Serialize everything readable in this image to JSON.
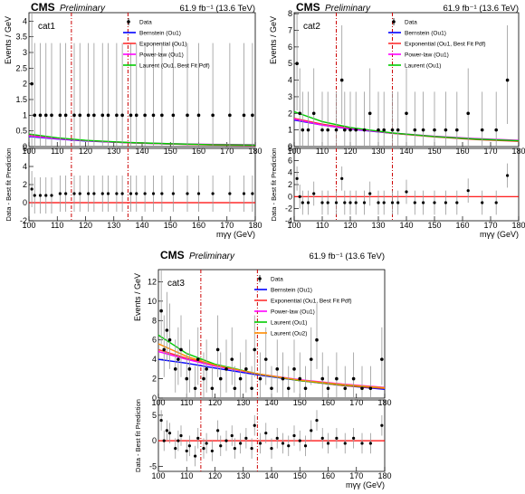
{
  "header": {
    "cms": "CMS",
    "preliminary": "Preliminary",
    "lumi": "61.9 fb⁻¹ (13.6 TeV)"
  },
  "colors": {
    "data": "#000000",
    "bernstein": "#0000ff",
    "exponential": "#ff3030",
    "powerlaw": "#ff00ff",
    "laurent": "#00cc00",
    "laurent2": "#ff8c00",
    "window": "#cc0000",
    "fitline": "#ff0000"
  },
  "chart_data": [
    {
      "type": "scatter",
      "category": "cat1",
      "xlabel": "mγγ (GeV)",
      "ylabel": "Events / GeV",
      "ratio_ylabel": "Data - Best fit Prediction",
      "xlim": [
        100,
        180
      ],
      "ylim": [
        0,
        4.5
      ],
      "ratio_ylim": [
        -2,
        6
      ],
      "yticks": [
        0,
        0.5,
        1,
        1.5,
        2,
        2.5,
        3,
        3.5,
        4
      ],
      "ratio_yticks": [
        -2,
        0,
        2,
        4,
        6
      ],
      "xticks": [
        100,
        110,
        120,
        130,
        140,
        150,
        160,
        170,
        180
      ],
      "signal_window": [
        115,
        135
      ],
      "legend": [
        "Data",
        "Bernstein (Ou1)",
        "Exponential (Ou1)",
        "Power-law (Ou1)",
        "Laurent (Ou1, Best Fit Pdf)"
      ],
      "data_x": [
        101,
        102,
        104,
        106,
        108,
        111,
        113,
        116,
        118,
        121,
        123,
        126,
        128,
        131,
        133,
        136,
        138,
        141,
        144,
        147,
        151,
        156,
        160,
        165,
        171,
        176,
        179
      ],
      "data_y": [
        2,
        1,
        1,
        1,
        1,
        1,
        1,
        1,
        1,
        1,
        1,
        1,
        1,
        1,
        1,
        1,
        1,
        1,
        1,
        1,
        1,
        1,
        1,
        1,
        1,
        1,
        1
      ],
      "ratio_y": [
        1.5,
        0.8,
        0.8,
        0.8,
        0.8,
        1,
        1,
        1,
        1,
        1,
        1,
        1,
        1,
        1,
        1,
        1,
        1,
        1,
        1,
        1,
        1,
        1,
        1,
        1,
        1,
        1,
        1
      ],
      "series": [
        {
          "name": "Bernstein (Ou1)",
          "x": [
            100,
            110,
            120,
            135,
            150,
            165,
            180
          ],
          "y": [
            0.32,
            0.24,
            0.18,
            0.12,
            0.08,
            0.06,
            0.05
          ]
        },
        {
          "name": "Exponential (Ou1)",
          "x": [
            100,
            110,
            120,
            135,
            150,
            165,
            180
          ],
          "y": [
            0.36,
            0.26,
            0.19,
            0.12,
            0.08,
            0.05,
            0.04
          ]
        },
        {
          "name": "Power-law (Ou1)",
          "x": [
            100,
            110,
            120,
            135,
            150,
            165,
            180
          ],
          "y": [
            0.34,
            0.25,
            0.19,
            0.13,
            0.09,
            0.07,
            0.06
          ]
        },
        {
          "name": "Laurent (Ou1, Best Fit Pdf)",
          "x": [
            100,
            110,
            120,
            135,
            150,
            165,
            180
          ],
          "y": [
            0.4,
            0.28,
            0.2,
            0.13,
            0.09,
            0.06,
            0.05
          ]
        }
      ]
    },
    {
      "type": "scatter",
      "category": "cat2",
      "xlabel": "mγγ (GeV)",
      "ylabel": "Events / GeV",
      "ratio_ylabel": "Data - Best fit Prediction",
      "xlim": [
        100,
        180
      ],
      "ylim": [
        0,
        8.5
      ],
      "ratio_ylim": [
        -4,
        8
      ],
      "yticks": [
        0,
        1,
        2,
        3,
        4,
        5,
        6,
        7,
        8
      ],
      "ratio_yticks": [
        -4,
        -2,
        0,
        2,
        4,
        6,
        8
      ],
      "xticks": [
        100,
        110,
        120,
        130,
        140,
        150,
        160,
        170,
        180
      ],
      "signal_window": [
        115,
        135
      ],
      "legend": [
        "Data",
        "Bernstein (Ou1)",
        "Exponential (Ou1, Best Fit Pdf)",
        "Power-law (Ou1)",
        "Laurent (Ou1)"
      ],
      "data_x": [
        101,
        102,
        103,
        105,
        107,
        110,
        112,
        115,
        117,
        118,
        120,
        122,
        125,
        127,
        130,
        132,
        135,
        137,
        140,
        143,
        146,
        150,
        154,
        158,
        162,
        167,
        172,
        176
      ],
      "data_y": [
        5,
        2,
        1,
        1,
        2,
        1,
        1,
        1,
        4,
        1,
        1,
        1,
        1,
        2,
        1,
        1,
        1,
        1,
        2,
        1,
        1,
        1,
        1,
        1,
        2,
        1,
        1,
        4
      ],
      "ratio_y": [
        3,
        0,
        -1,
        -1,
        0.5,
        -1,
        -1,
        -1,
        3,
        -1,
        -1,
        -1,
        -1,
        0.5,
        -1,
        -1,
        -1,
        -1,
        0.8,
        -1,
        -1,
        -1,
        -1,
        -1,
        1,
        -1,
        -1,
        3.5
      ],
      "series": [
        {
          "name": "Bernstein (Ou1)",
          "x": [
            100,
            110,
            120,
            135,
            150,
            165,
            180
          ],
          "y": [
            1.6,
            1.3,
            1.05,
            0.8,
            0.6,
            0.45,
            0.35
          ]
        },
        {
          "name": "Exponential (Ou1, Best Fit Pdf)",
          "x": [
            100,
            110,
            120,
            135,
            150,
            165,
            180
          ],
          "y": [
            1.7,
            1.35,
            1.1,
            0.8,
            0.58,
            0.42,
            0.32
          ]
        },
        {
          "name": "Power-law (Ou1)",
          "x": [
            100,
            110,
            120,
            135,
            150,
            165,
            180
          ],
          "y": [
            1.65,
            1.3,
            1.07,
            0.82,
            0.62,
            0.48,
            0.38
          ]
        },
        {
          "name": "Laurent (Ou1)",
          "x": [
            100,
            110,
            120,
            135,
            150,
            165,
            180
          ],
          "y": [
            2.1,
            1.5,
            1.15,
            0.82,
            0.6,
            0.45,
            0.35
          ]
        }
      ]
    },
    {
      "type": "scatter",
      "category": "cat3",
      "xlabel": "mγγ (GeV)",
      "ylabel": "Events / GeV",
      "ratio_ylabel": "Data - Best fit Prediction",
      "xlim": [
        100,
        180
      ],
      "ylim": [
        0,
        14
      ],
      "ratio_ylim": [
        -6,
        8
      ],
      "yticks": [
        0,
        2,
        4,
        6,
        8,
        10,
        12
      ],
      "ratio_yticks": [
        -5,
        0,
        5
      ],
      "xticks": [
        100,
        110,
        120,
        130,
        140,
        150,
        160,
        170,
        180
      ],
      "signal_window": [
        115,
        135
      ],
      "legend": [
        "Data",
        "Bernstein (Ou1)",
        "Exponential (Ou1, Best Fit Pdf)",
        "Power-law (Ou1)",
        "Laurent (Ou1)",
        "Laurent (Ou2)"
      ],
      "data_x": [
        101,
        102,
        103,
        104,
        106,
        107,
        108,
        110,
        111,
        113,
        114,
        116,
        117,
        119,
        121,
        122,
        124,
        126,
        127,
        129,
        131,
        133,
        134,
        136,
        138,
        140,
        142,
        144,
        146,
        148,
        150,
        152,
        154,
        156,
        158,
        160,
        163,
        166,
        169,
        172,
        175,
        179
      ],
      "data_y": [
        9,
        5,
        7,
        6,
        3,
        4,
        5,
        2,
        3,
        1,
        4,
        2,
        3,
        1,
        5,
        2,
        3,
        4,
        1,
        2,
        3,
        1,
        5,
        2,
        4,
        1,
        3,
        2,
        1,
        3,
        2,
        1,
        4,
        6,
        2,
        1,
        2,
        1,
        2,
        1,
        1,
        4
      ],
      "ratio_y": [
        4,
        0,
        2,
        1.5,
        -1.5,
        0,
        1,
        -2,
        -1,
        -3,
        0.5,
        -1.5,
        -0.5,
        -2,
        2,
        -1,
        0,
        1,
        -1.5,
        -0.5,
        0.5,
        -1.5,
        3,
        -0.5,
        1.5,
        -1.5,
        0.5,
        -0.5,
        -1,
        1,
        0,
        -1,
        2,
        4,
        0.5,
        -0.5,
        0.5,
        -0.5,
        0.5,
        -0.5,
        -0.5,
        3
      ],
      "series": [
        {
          "name": "Bernstein (Ou1)",
          "x": [
            100,
            110,
            120,
            135,
            150,
            165,
            180
          ],
          "y": [
            4.0,
            3.6,
            3.1,
            2.4,
            1.8,
            1.3,
            0.9
          ]
        },
        {
          "name": "Exponential (Ou1, Best Fit Pdf)",
          "x": [
            100,
            110,
            120,
            135,
            150,
            165,
            180
          ],
          "y": [
            5.0,
            4.1,
            3.4,
            2.5,
            1.8,
            1.3,
            1.0
          ]
        },
        {
          "name": "Power-law (Ou1)",
          "x": [
            100,
            110,
            120,
            135,
            150,
            165,
            180
          ],
          "y": [
            4.8,
            4.0,
            3.3,
            2.5,
            1.9,
            1.45,
            1.1
          ]
        },
        {
          "name": "Laurent (Ou1)",
          "x": [
            100,
            110,
            120,
            135,
            150,
            165,
            180
          ],
          "y": [
            6.5,
            4.6,
            3.5,
            2.5,
            1.8,
            1.35,
            1.05
          ]
        },
        {
          "name": "Laurent (Ou2)",
          "x": [
            100,
            110,
            120,
            135,
            150,
            165,
            180
          ],
          "y": [
            5.6,
            4.3,
            3.4,
            2.5,
            1.85,
            1.4,
            1.05
          ]
        }
      ]
    }
  ]
}
